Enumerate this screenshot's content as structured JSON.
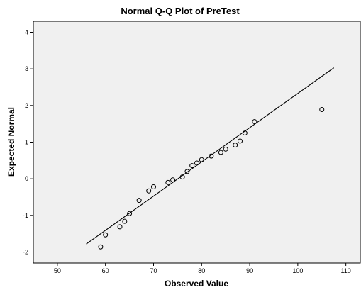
{
  "chart_data": {
    "type": "scatter",
    "title": "Normal Q-Q Plot of PreTest",
    "xlabel": "Observed Value",
    "ylabel": "Expected Normal",
    "xlim": [
      45,
      113
    ],
    "ylim": [
      -2.3,
      4.3
    ],
    "x_ticks": [
      50,
      60,
      70,
      80,
      90,
      100,
      110
    ],
    "y_ticks": [
      -2,
      -1,
      0,
      1,
      2,
      3,
      4
    ],
    "grid": false,
    "reference_line": {
      "x1": 56,
      "y1": -1.78,
      "x2": 107.5,
      "y2": 3.03
    },
    "points": [
      {
        "x": 59,
        "y": -1.86
      },
      {
        "x": 60,
        "y": -1.53
      },
      {
        "x": 63,
        "y": -1.31
      },
      {
        "x": 64,
        "y": -1.16
      },
      {
        "x": 65,
        "y": -0.95
      },
      {
        "x": 67,
        "y": -0.59
      },
      {
        "x": 69,
        "y": -0.33
      },
      {
        "x": 70,
        "y": -0.22
      },
      {
        "x": 73,
        "y": -0.1
      },
      {
        "x": 74,
        "y": -0.03
      },
      {
        "x": 76,
        "y": 0.05
      },
      {
        "x": 77,
        "y": 0.2
      },
      {
        "x": 78,
        "y": 0.36
      },
      {
        "x": 79,
        "y": 0.43
      },
      {
        "x": 80,
        "y": 0.52
      },
      {
        "x": 82,
        "y": 0.62
      },
      {
        "x": 84,
        "y": 0.72
      },
      {
        "x": 85,
        "y": 0.81
      },
      {
        "x": 87,
        "y": 0.92
      },
      {
        "x": 88,
        "y": 1.03
      },
      {
        "x": 89,
        "y": 1.25
      },
      {
        "x": 91,
        "y": 1.56
      },
      {
        "x": 105,
        "y": 1.89
      }
    ]
  }
}
